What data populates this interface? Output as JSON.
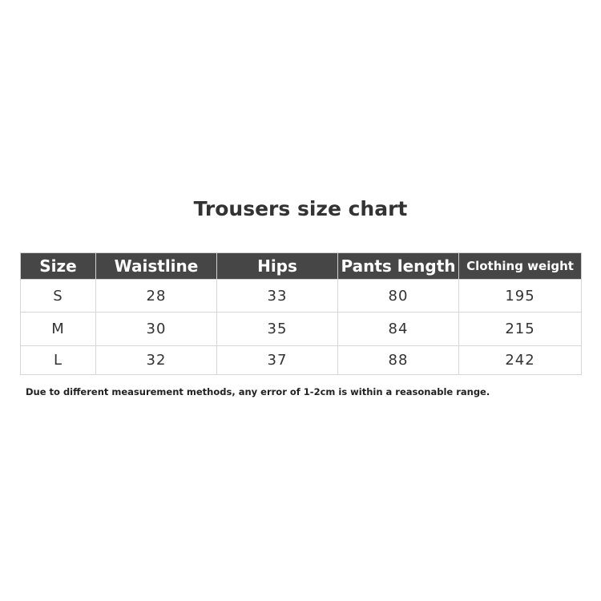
{
  "title": "Trousers size chart",
  "table": {
    "headers": [
      "Size",
      "Waistline",
      "Hips",
      "Pants length",
      "Clothing weight"
    ],
    "rows": [
      [
        "S",
        "28",
        "33",
        "80",
        "195"
      ],
      [
        "M",
        "30",
        "35",
        "84",
        "215"
      ],
      [
        "L",
        "32",
        "37",
        "88",
        "242"
      ]
    ]
  },
  "note": "Due to different measurement methods, any error of 1-2cm is within a reasonable range.",
  "colors": {
    "header_bg": "#464646",
    "header_text": "#ffffff"
  }
}
